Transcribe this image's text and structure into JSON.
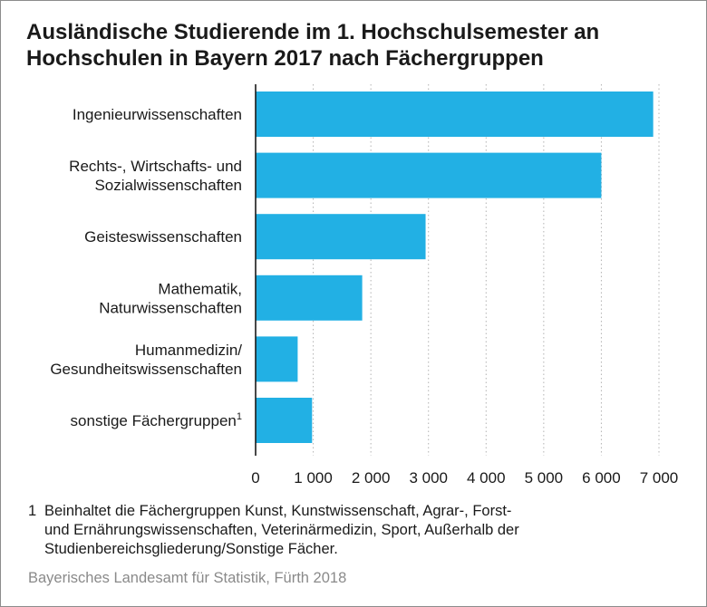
{
  "chart_data": {
    "type": "bar",
    "orientation": "horizontal",
    "title_lines": [
      "Ausländische Studierende im 1. Hochschulsemester an",
      "Hochschulen in Bayern 2017 nach Fächergruppen"
    ],
    "categories": [
      {
        "lines": [
          "Ingenieurwissenschaften"
        ],
        "sup": "",
        "value": 6900
      },
      {
        "lines": [
          "Rechts-, Wirtschafts- und",
          "Sozialwissenschaften"
        ],
        "sup": "",
        "value": 6000
      },
      {
        "lines": [
          "Geisteswissenschaften"
        ],
        "sup": "",
        "value": 2950
      },
      {
        "lines": [
          "Mathematik,",
          "Naturwissenschaften"
        ],
        "sup": "",
        "value": 1850
      },
      {
        "lines": [
          "Humanmedizin/",
          "Gesundheitswissenschaften"
        ],
        "sup": "",
        "value": 730
      },
      {
        "lines": [
          "sonstige Fächergruppen"
        ],
        "sup": "1",
        "value": 980
      }
    ],
    "xlim": [
      0,
      7000
    ],
    "x_ticks": [
      0,
      1000,
      2000,
      3000,
      4000,
      5000,
      6000,
      7000
    ],
    "x_tick_labels": [
      "0",
      "1 000",
      "2 000",
      "3 000",
      "4 000",
      "5 000",
      "6 000",
      "7 000"
    ],
    "grid": true,
    "bar_color": "#22b0e4",
    "grid_color": "#b3b3b3"
  },
  "footnote": {
    "marker": "1",
    "lines": [
      "Beinhaltet die Fächergruppen Kunst, Kunstwissenschaft, Agrar-, Forst-",
      "und  Ernährungswissenschaften, Veterinärmedizin, Sport, Außerhalb der",
      "Studienbereichsgliederung/Sonstige Fächer."
    ]
  },
  "source": "Bayerisches Landesamt für Statistik, Fürth 2018"
}
